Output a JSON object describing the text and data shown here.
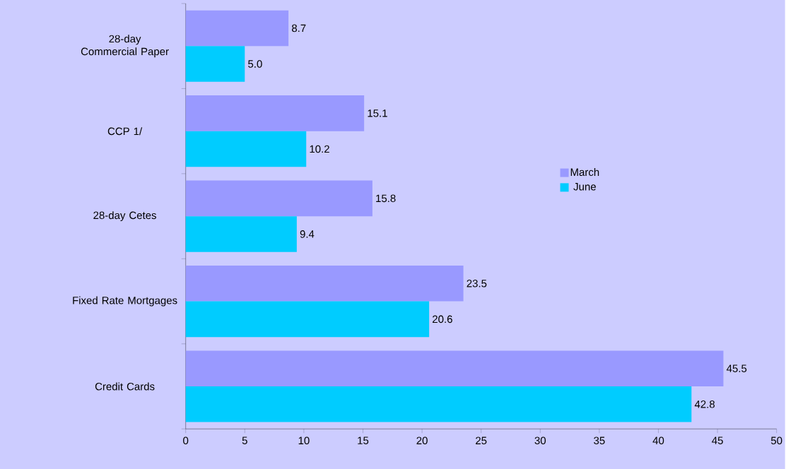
{
  "chart_data": {
    "type": "bar",
    "orientation": "horizontal",
    "categories": [
      "28-day Commercial Paper",
      "CCP 1/",
      "28-day Cetes",
      "Fixed Rate Mortgages",
      "Credit Cards"
    ],
    "series": [
      {
        "name": "March",
        "color": "#9999ff",
        "values": [
          8.7,
          15.1,
          15.8,
          23.5,
          45.5
        ],
        "value_labels": [
          "8.7",
          "15.1",
          "15.8",
          "23.5",
          "45.5"
        ]
      },
      {
        "name": "June",
        "color": "#00ccff",
        "values": [
          5.0,
          10.2,
          9.4,
          20.6,
          42.8
        ],
        "value_labels": [
          "5.0",
          "10.2",
          "9.4",
          "20.6",
          "42.8"
        ]
      }
    ],
    "xlim": [
      0,
      50
    ],
    "xticks": [
      0,
      5,
      10,
      15,
      20,
      25,
      30,
      35,
      40,
      45,
      50
    ],
    "grid": false,
    "legend": "right"
  }
}
